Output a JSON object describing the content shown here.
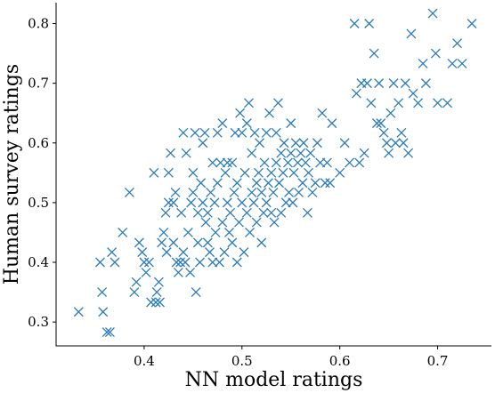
{
  "chart_data": {
    "type": "scatter",
    "title": "",
    "xlabel": "NN model ratings",
    "ylabel": "Human survey ratings",
    "xlim": [
      0.31,
      0.755
    ],
    "ylim": [
      0.26,
      0.835
    ],
    "xticks": [
      "0.4",
      "0.5",
      "0.6",
      "0.7"
    ],
    "xtick_values": [
      0.4,
      0.5,
      0.6,
      0.7
    ],
    "yticks": [
      "0.3",
      "0.4",
      "0.5",
      "0.6",
      "0.7",
      "0.8"
    ],
    "ytick_values": [
      0.3,
      0.4,
      0.5,
      0.6,
      0.7,
      0.8
    ],
    "grid": false,
    "marker": "x",
    "color": "#2b7bb9",
    "points": [
      [
        0.333,
        0.317
      ],
      [
        0.355,
        0.4
      ],
      [
        0.357,
        0.35
      ],
      [
        0.358,
        0.317
      ],
      [
        0.362,
        0.283
      ],
      [
        0.365,
        0.283
      ],
      [
        0.367,
        0.417
      ],
      [
        0.37,
        0.4
      ],
      [
        0.378,
        0.45
      ],
      [
        0.385,
        0.517
      ],
      [
        0.39,
        0.35
      ],
      [
        0.392,
        0.367
      ],
      [
        0.395,
        0.433
      ],
      [
        0.398,
        0.417
      ],
      [
        0.4,
        0.4
      ],
      [
        0.402,
        0.383
      ],
      [
        0.405,
        0.4
      ],
      [
        0.407,
        0.333
      ],
      [
        0.41,
        0.55
      ],
      [
        0.412,
        0.333
      ],
      [
        0.413,
        0.35
      ],
      [
        0.415,
        0.367
      ],
      [
        0.416,
        0.333
      ],
      [
        0.418,
        0.433
      ],
      [
        0.42,
        0.45
      ],
      [
        0.422,
        0.483
      ],
      [
        0.423,
        0.417
      ],
      [
        0.425,
        0.5
      ],
      [
        0.425,
        0.55
      ],
      [
        0.427,
        0.583
      ],
      [
        0.43,
        0.433
      ],
      [
        0.43,
        0.5
      ],
      [
        0.432,
        0.517
      ],
      [
        0.433,
        0.4
      ],
      [
        0.435,
        0.383
      ],
      [
        0.437,
        0.4
      ],
      [
        0.438,
        0.483
      ],
      [
        0.44,
        0.417
      ],
      [
        0.44,
        0.617
      ],
      [
        0.442,
        0.4
      ],
      [
        0.443,
        0.583
      ],
      [
        0.445,
        0.45
      ],
      [
        0.447,
        0.383
      ],
      [
        0.448,
        0.5
      ],
      [
        0.45,
        0.517
      ],
      [
        0.45,
        0.55
      ],
      [
        0.452,
        0.617
      ],
      [
        0.453,
        0.35
      ],
      [
        0.455,
        0.433
      ],
      [
        0.455,
        0.483
      ],
      [
        0.457,
        0.4
      ],
      [
        0.458,
        0.533
      ],
      [
        0.46,
        0.5
      ],
      [
        0.46,
        0.6
      ],
      [
        0.462,
        0.617
      ],
      [
        0.463,
        0.467
      ],
      [
        0.465,
        0.433
      ],
      [
        0.465,
        0.483
      ],
      [
        0.467,
        0.417
      ],
      [
        0.468,
        0.517
      ],
      [
        0.47,
        0.4
      ],
      [
        0.47,
        0.567
      ],
      [
        0.472,
        0.5
      ],
      [
        0.473,
        0.45
      ],
      [
        0.475,
        0.617
      ],
      [
        0.475,
        0.533
      ],
      [
        0.477,
        0.4
      ],
      [
        0.478,
        0.567
      ],
      [
        0.48,
        0.467
      ],
      [
        0.48,
        0.633
      ],
      [
        0.482,
        0.417
      ],
      [
        0.483,
        0.55
      ],
      [
        0.485,
        0.5
      ],
      [
        0.485,
        0.567
      ],
      [
        0.487,
        0.45
      ],
      [
        0.488,
        0.483
      ],
      [
        0.49,
        0.567
      ],
      [
        0.49,
        0.433
      ],
      [
        0.492,
        0.517
      ],
      [
        0.493,
        0.617
      ],
      [
        0.495,
        0.4
      ],
      [
        0.495,
        0.533
      ],
      [
        0.497,
        0.467
      ],
      [
        0.498,
        0.65
      ],
      [
        0.5,
        0.5
      ],
      [
        0.5,
        0.617
      ],
      [
        0.502,
        0.417
      ],
      [
        0.503,
        0.55
      ],
      [
        0.505,
        0.483
      ],
      [
        0.505,
        0.633
      ],
      [
        0.507,
        0.667
      ],
      [
        0.508,
        0.45
      ],
      [
        0.51,
        0.517
      ],
      [
        0.51,
        0.583
      ],
      [
        0.512,
        0.5
      ],
      [
        0.513,
        0.617
      ],
      [
        0.515,
        0.533
      ],
      [
        0.515,
        0.467
      ],
      [
        0.517,
        0.55
      ],
      [
        0.518,
        0.6
      ],
      [
        0.52,
        0.433
      ],
      [
        0.52,
        0.517
      ],
      [
        0.522,
        0.483
      ],
      [
        0.523,
        0.567
      ],
      [
        0.525,
        0.5
      ],
      [
        0.525,
        0.617
      ],
      [
        0.527,
        0.533
      ],
      [
        0.528,
        0.65
      ],
      [
        0.53,
        0.483
      ],
      [
        0.53,
        0.55
      ],
      [
        0.532,
        0.517
      ],
      [
        0.533,
        0.467
      ],
      [
        0.535,
        0.567
      ],
      [
        0.535,
        0.617
      ],
      [
        0.537,
        0.667
      ],
      [
        0.538,
        0.533
      ],
      [
        0.54,
        0.483
      ],
      [
        0.54,
        0.583
      ],
      [
        0.542,
        0.55
      ],
      [
        0.543,
        0.6
      ],
      [
        0.545,
        0.5
      ],
      [
        0.547,
        0.567
      ],
      [
        0.548,
        0.517
      ],
      [
        0.55,
        0.633
      ],
      [
        0.55,
        0.583
      ],
      [
        0.552,
        0.5
      ],
      [
        0.553,
        0.55
      ],
      [
        0.555,
        0.6
      ],
      [
        0.557,
        0.567
      ],
      [
        0.558,
        0.517
      ],
      [
        0.56,
        0.583
      ],
      [
        0.562,
        0.533
      ],
      [
        0.563,
        0.6
      ],
      [
        0.565,
        0.567
      ],
      [
        0.567,
        0.483
      ],
      [
        0.568,
        0.55
      ],
      [
        0.57,
        0.583
      ],
      [
        0.572,
        0.517
      ],
      [
        0.575,
        0.533
      ],
      [
        0.577,
        0.6
      ],
      [
        0.58,
        0.567
      ],
      [
        0.582,
        0.65
      ],
      [
        0.585,
        0.533
      ],
      [
        0.587,
        0.567
      ],
      [
        0.59,
        0.533
      ],
      [
        0.592,
        0.633
      ],
      [
        0.6,
        0.55
      ],
      [
        0.605,
        0.6
      ],
      [
        0.61,
        0.567
      ],
      [
        0.615,
        0.8
      ],
      [
        0.617,
        0.683
      ],
      [
        0.62,
        0.567
      ],
      [
        0.622,
        0.7
      ],
      [
        0.625,
        0.583
      ],
      [
        0.628,
        0.7
      ],
      [
        0.63,
        0.8
      ],
      [
        0.632,
        0.667
      ],
      [
        0.635,
        0.75
      ],
      [
        0.638,
        0.633
      ],
      [
        0.64,
        0.7
      ],
      [
        0.642,
        0.633
      ],
      [
        0.645,
        0.617
      ],
      [
        0.648,
        0.6
      ],
      [
        0.65,
        0.583
      ],
      [
        0.652,
        0.65
      ],
      [
        0.655,
        0.7
      ],
      [
        0.657,
        0.6
      ],
      [
        0.66,
        0.667
      ],
      [
        0.663,
        0.617
      ],
      [
        0.665,
        0.6
      ],
      [
        0.667,
        0.7
      ],
      [
        0.67,
        0.583
      ],
      [
        0.673,
        0.783
      ],
      [
        0.675,
        0.683
      ],
      [
        0.68,
        0.667
      ],
      [
        0.685,
        0.733
      ],
      [
        0.688,
        0.7
      ],
      [
        0.695,
        0.817
      ],
      [
        0.698,
        0.75
      ],
      [
        0.7,
        0.667
      ],
      [
        0.71,
        0.667
      ],
      [
        0.715,
        0.733
      ],
      [
        0.72,
        0.767
      ],
      [
        0.725,
        0.733
      ],
      [
        0.735,
        0.8
      ]
    ]
  }
}
